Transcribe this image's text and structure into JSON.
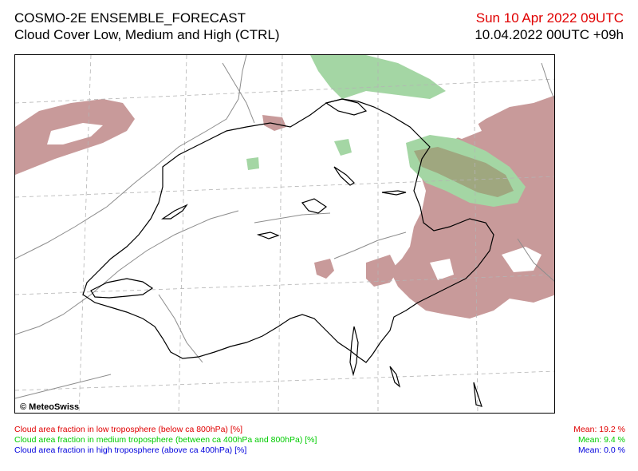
{
  "header": {
    "title_line1": "COSMO-2E ENSEMBLE_FORECAST",
    "title_line2": "Cloud Cover Low, Medium and High (CTRL)",
    "valid_time": "Sun 10 Apr 2022 09UTC",
    "run_time": "10.04.2022 00UTC +09h"
  },
  "map": {
    "copyright": "© MeteoSwiss",
    "colors": {
      "low": "#c89a9a",
      "medium": "#a4d6a4",
      "overlap": "#9fa77f",
      "border": "#000000",
      "terrain": "#8c8c8c",
      "grid": "#b4b4b4"
    }
  },
  "legend": {
    "low": {
      "label": "Cloud area fraction in low troposphere (below ca 800hPa) [%]",
      "mean": "Mean:  19.2 %",
      "color": "#e00000"
    },
    "medium": {
      "label": "Cloud area fraction in medium troposphere (between ca 400hPa and 800hPa) [%]",
      "mean": "Mean:   9.4 %",
      "color": "#00cc00"
    },
    "high": {
      "label": "Cloud area fraction in high troposphere (above ca 400hPa) [%]",
      "mean": "Mean:   0.0 %",
      "color": "#0000dd"
    }
  }
}
